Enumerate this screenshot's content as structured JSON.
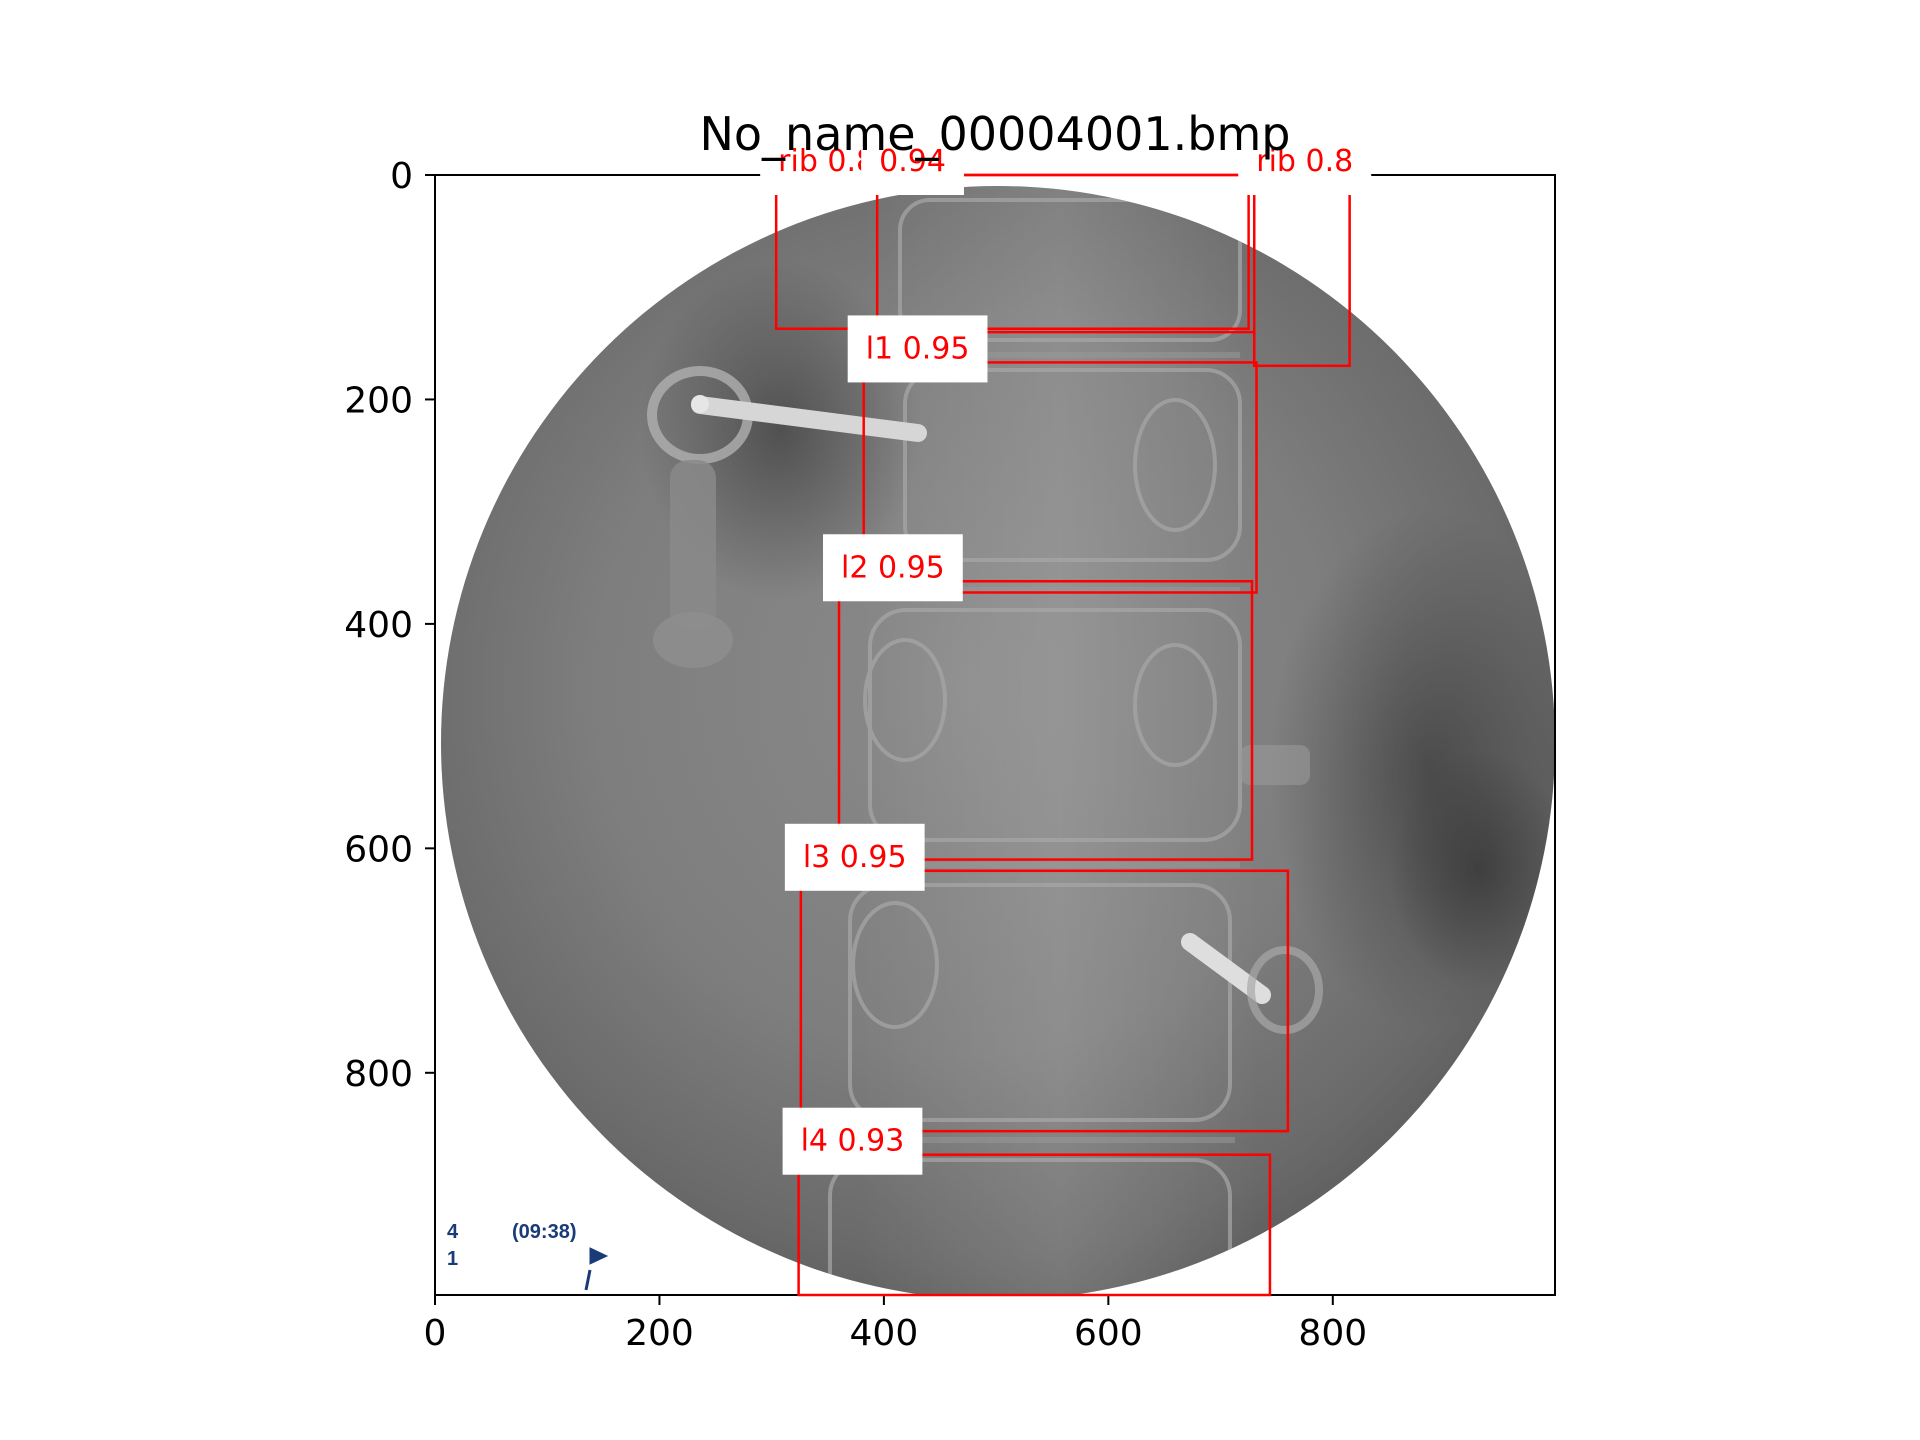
{
  "title": "No_name_00004001.bmp",
  "axes": {
    "x_ticks": [
      "0",
      "200",
      "400",
      "600",
      "800"
    ],
    "y_ticks": [
      "0",
      "200",
      "400",
      "600",
      "800"
    ],
    "xlim": [
      0,
      998
    ],
    "ylim": [
      998,
      0
    ]
  },
  "overlay": {
    "color": "#1a3a78",
    "line1_left": "4",
    "line1_right": "(09:38)",
    "line2_left": "1",
    "flag_icon": "flag-icon"
  },
  "box_color": "#ff0000",
  "detections": [
    {
      "id": "rib-081",
      "label": "rib 0.81",
      "x1": 304,
      "y1": 0,
      "x2": 725,
      "y2": 137
    },
    {
      "id": "rib-094",
      "label": "0.94",
      "x1": 394,
      "y1": 0,
      "x2": 730,
      "y2": 140
    },
    {
      "id": "rib-080",
      "label": "rib 0.8",
      "x1": 730,
      "y1": 0,
      "x2": 815,
      "y2": 170
    },
    {
      "id": "l1",
      "label": "l1  0.95",
      "x1": 382,
      "y1": 167,
      "x2": 732,
      "y2": 372
    },
    {
      "id": "l2",
      "label": "l2  0.95",
      "x1": 360,
      "y1": 362,
      "x2": 728,
      "y2": 610
    },
    {
      "id": "l3",
      "label": "l3  0.95",
      "x1": 326,
      "y1": 620,
      "x2": 760,
      "y2": 852
    },
    {
      "id": "l4",
      "label": "l4  0.93",
      "x1": 324,
      "y1": 873,
      "x2": 744,
      "y2": 998
    }
  ]
}
